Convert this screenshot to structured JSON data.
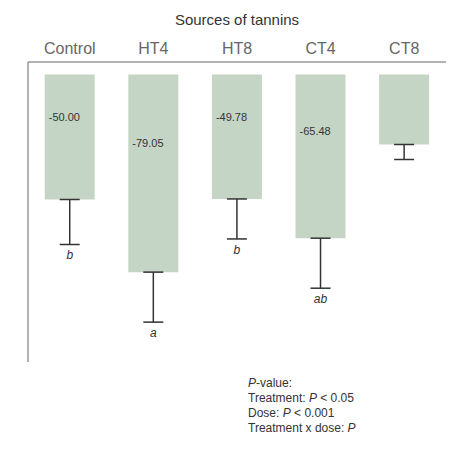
{
  "chart_data": {
    "type": "bar",
    "title": "Sources of tannins",
    "categories": [
      "Control",
      "HT4",
      "HT8",
      "CT4",
      "CT8"
    ],
    "values": [
      -50.0,
      -79.05,
      -49.78,
      -65.48,
      -28.0
    ],
    "value_labels": [
      "-50.00",
      "-79.05",
      "-49.78",
      "-65.48",
      null
    ],
    "data_labels": true,
    "errors_down": [
      18,
      20,
      16,
      20,
      6
    ],
    "sig_labels": [
      "b",
      "a",
      "b",
      "ab",
      null
    ],
    "color": "#c5d5c5",
    "ylim": [
      -115,
      5
    ],
    "tick_labels": "x",
    "grid": false,
    "annotations": [
      "P-value:",
      "Treatment: P < 0.05",
      "Dose: P < 0.001",
      "Treatment x dose: P"
    ]
  }
}
